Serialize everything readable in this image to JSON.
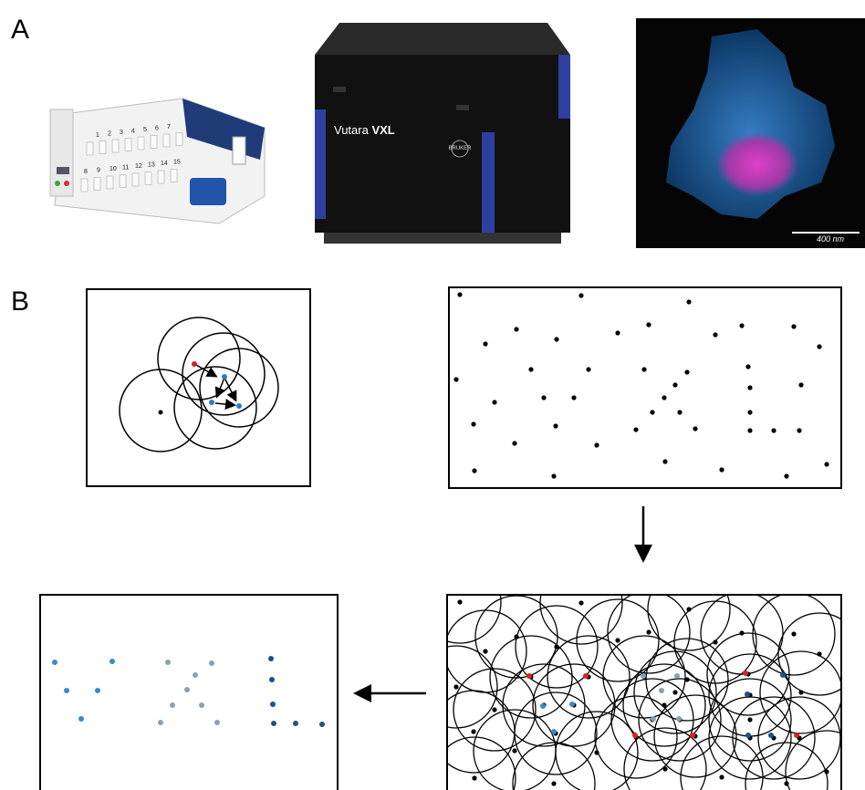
{
  "panels": {
    "a_label": "A",
    "b_label": "B"
  },
  "sampler": {
    "row1": [
      "1",
      "2",
      "3",
      "4",
      "5",
      "6",
      "7"
    ],
    "row2": [
      "8",
      "9",
      "10",
      "11",
      "12",
      "13",
      "14",
      "15"
    ]
  },
  "instrument": {
    "brand": "Vutara",
    "model": "VXL",
    "maker": "BRUKER"
  },
  "image": {
    "scale_bar": "400 nm"
  }
}
